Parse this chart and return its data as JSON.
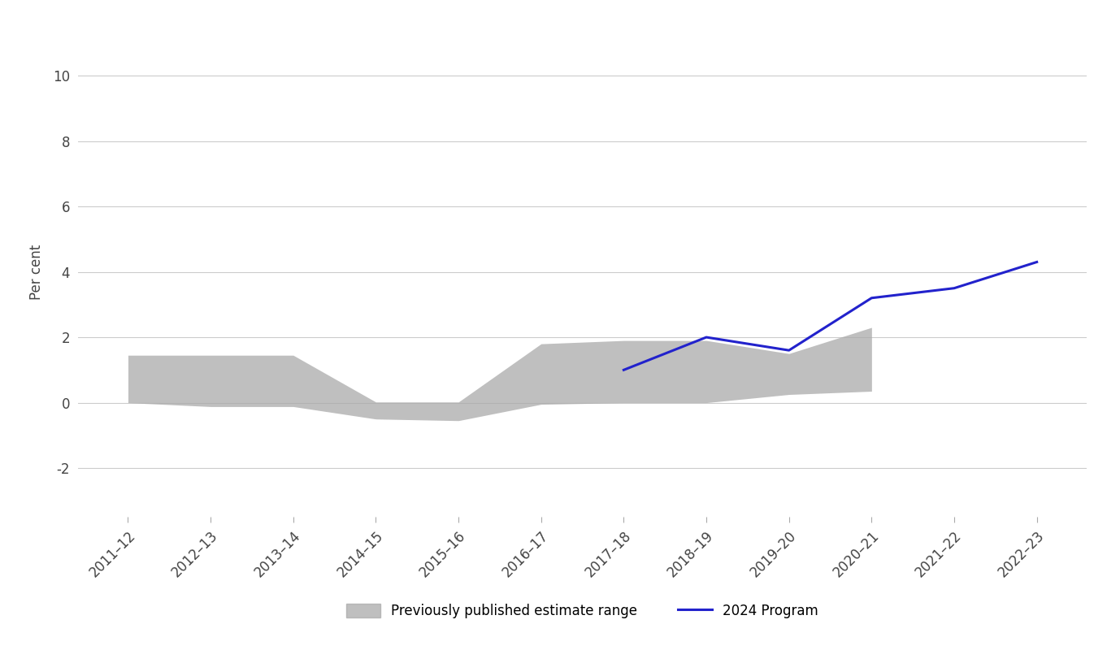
{
  "x_labels": [
    "2011–12",
    "2012–13",
    "2013–14",
    "2014–15",
    "2015–16",
    "2016–17",
    "2017–18",
    "2018–19",
    "2019–20",
    "2020–21",
    "2021–22",
    "2022–23"
  ],
  "x_indices": [
    0,
    1,
    2,
    3,
    4,
    5,
    6,
    7,
    8,
    9,
    10,
    11
  ],
  "shade_upper": [
    1.45,
    1.45,
    1.45,
    0.02,
    0.02,
    1.8,
    1.9,
    1.9,
    1.5,
    2.3,
    null,
    null
  ],
  "shade_lower": [
    0.0,
    -0.12,
    -0.12,
    -0.5,
    -0.55,
    -0.05,
    0.0,
    0.0,
    0.25,
    0.35,
    null,
    null
  ],
  "blue_x": [
    6,
    7,
    8,
    9,
    10,
    11
  ],
  "blue_y": [
    1.0,
    2.0,
    1.6,
    3.2,
    3.5,
    4.3
  ],
  "ylim": [
    -3.5,
    11.5
  ],
  "yticks": [
    -2,
    0,
    2,
    4,
    6,
    8,
    10
  ],
  "ylabel": "Per cent",
  "shade_color": "#aaaaaa",
  "shade_alpha": 0.75,
  "line_color": "#2222cc",
  "line_width": 2.2,
  "bg_color": "#ffffff",
  "grid_color": "#cccccc",
  "legend_shade_label": "Previously published estimate range",
  "legend_line_label": "2024 Program",
  "tick_label_fontsize": 12,
  "ylabel_fontsize": 12
}
